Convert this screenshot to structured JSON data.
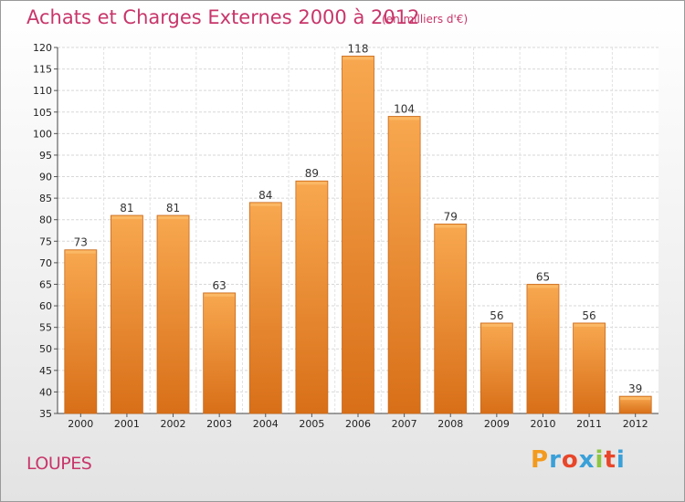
{
  "chart_data": {
    "type": "bar",
    "title": "Achats et Charges Externes 2000 à 2012",
    "unit": "(en milliers d'€)",
    "categories": [
      "2000",
      "2001",
      "2002",
      "2003",
      "2004",
      "2005",
      "2006",
      "2007",
      "2008",
      "2009",
      "2010",
      "2011",
      "2012"
    ],
    "values": [
      73,
      81,
      81,
      63,
      84,
      89,
      118,
      104,
      79,
      56,
      65,
      56,
      39
    ],
    "ylim": [
      35,
      120
    ],
    "yticks": [
      35,
      40,
      45,
      50,
      55,
      60,
      65,
      70,
      75,
      80,
      85,
      90,
      95,
      100,
      105,
      110,
      115,
      120
    ],
    "grid": true,
    "bar_color": "#f08a2c",
    "bar_color_light": "#f8a850",
    "bar_color_dark": "#d86f18"
  },
  "footer": {
    "city": "LOUPES",
    "logo": [
      "P",
      "r",
      "o",
      "x",
      "i",
      "t",
      "i"
    ],
    "logo_colors": [
      "#f39a1e",
      "#3aa0d8",
      "#e8462a",
      "#3aa0d8",
      "#8cc63f",
      "#e8462a",
      "#3aa0d8"
    ]
  }
}
